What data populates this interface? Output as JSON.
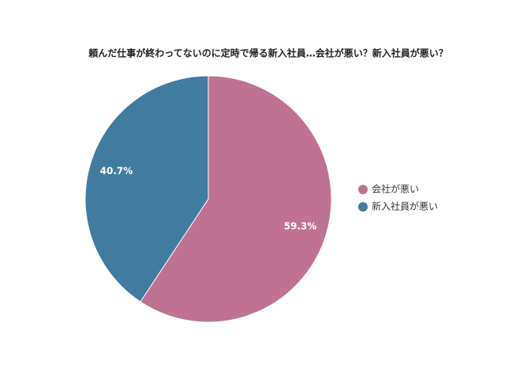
{
  "chart_data": {
    "type": "pie",
    "title": "頼んだ仕事が終わってないのに定時で帰る新入社員…会社が悪い？新入社員が悪い？",
    "categories": [
      "会社が悪い",
      "新入社員が悪い"
    ],
    "values": [
      59.3,
      40.7
    ],
    "value_labels": [
      "59.3%",
      "40.7%"
    ],
    "colors": [
      "#c07293",
      "#417ca0"
    ],
    "legend": "right"
  }
}
